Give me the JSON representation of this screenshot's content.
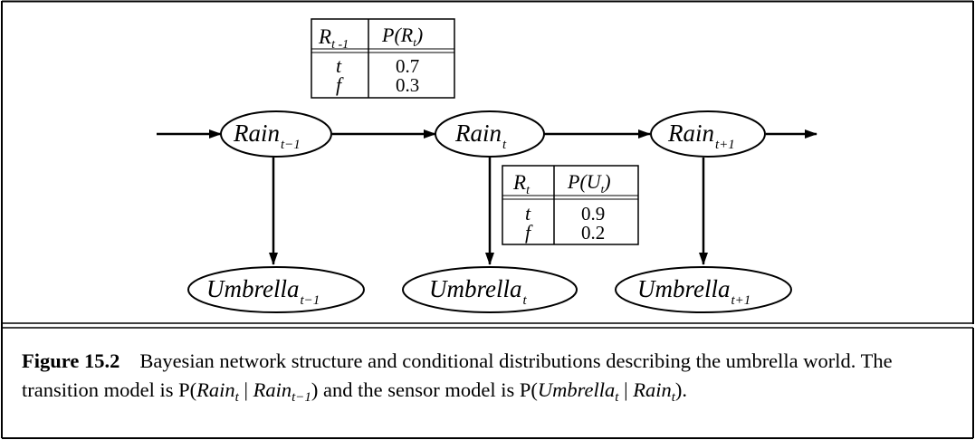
{
  "nodes": [
    {
      "id": "rain_tm1",
      "label": "Rain",
      "sub": "t−1"
    },
    {
      "id": "rain_t",
      "label": "Rain",
      "sub": "t"
    },
    {
      "id": "rain_tp1",
      "label": "Rain",
      "sub": "t+1"
    },
    {
      "id": "umb_tm1",
      "label": "Umbrella",
      "sub": "t−1"
    },
    {
      "id": "umb_t",
      "label": "Umbrella",
      "sub": "t"
    },
    {
      "id": "umb_tp1",
      "label": "Umbrella",
      "sub": "t+1"
    }
  ],
  "transition_table": {
    "header": [
      "R",
      "t -1",
      "P(R",
      "t",
      ")"
    ],
    "rows": [
      {
        "cond": "t",
        "value": "0.7"
      },
      {
        "cond": "f",
        "value": "0.3"
      }
    ]
  },
  "sensor_table": {
    "header": [
      "R",
      "t",
      "P(U",
      "t",
      ")"
    ],
    "rows": [
      {
        "cond": "t",
        "value": "0.9"
      },
      {
        "cond": "f",
        "value": "0.2"
      }
    ]
  },
  "caption": {
    "label": "Figure 15.2",
    "text_1": "Bayesian network structure and conditional distributions describing the umbrella world. The transition model is ",
    "text_2": " and the sensor model is ",
    "text_3": ".",
    "m1": {
      "P": "P(",
      "a": "Rain",
      "a_sub": "t",
      "bar": " | ",
      "b": "Rain",
      "b_sub": "t−1",
      "close": ")"
    },
    "m2": {
      "P": "P(",
      "a": "Umbrella",
      "a_sub": "t",
      "bar": " | ",
      "b": "Rain",
      "b_sub": "t",
      "close": ")"
    }
  }
}
